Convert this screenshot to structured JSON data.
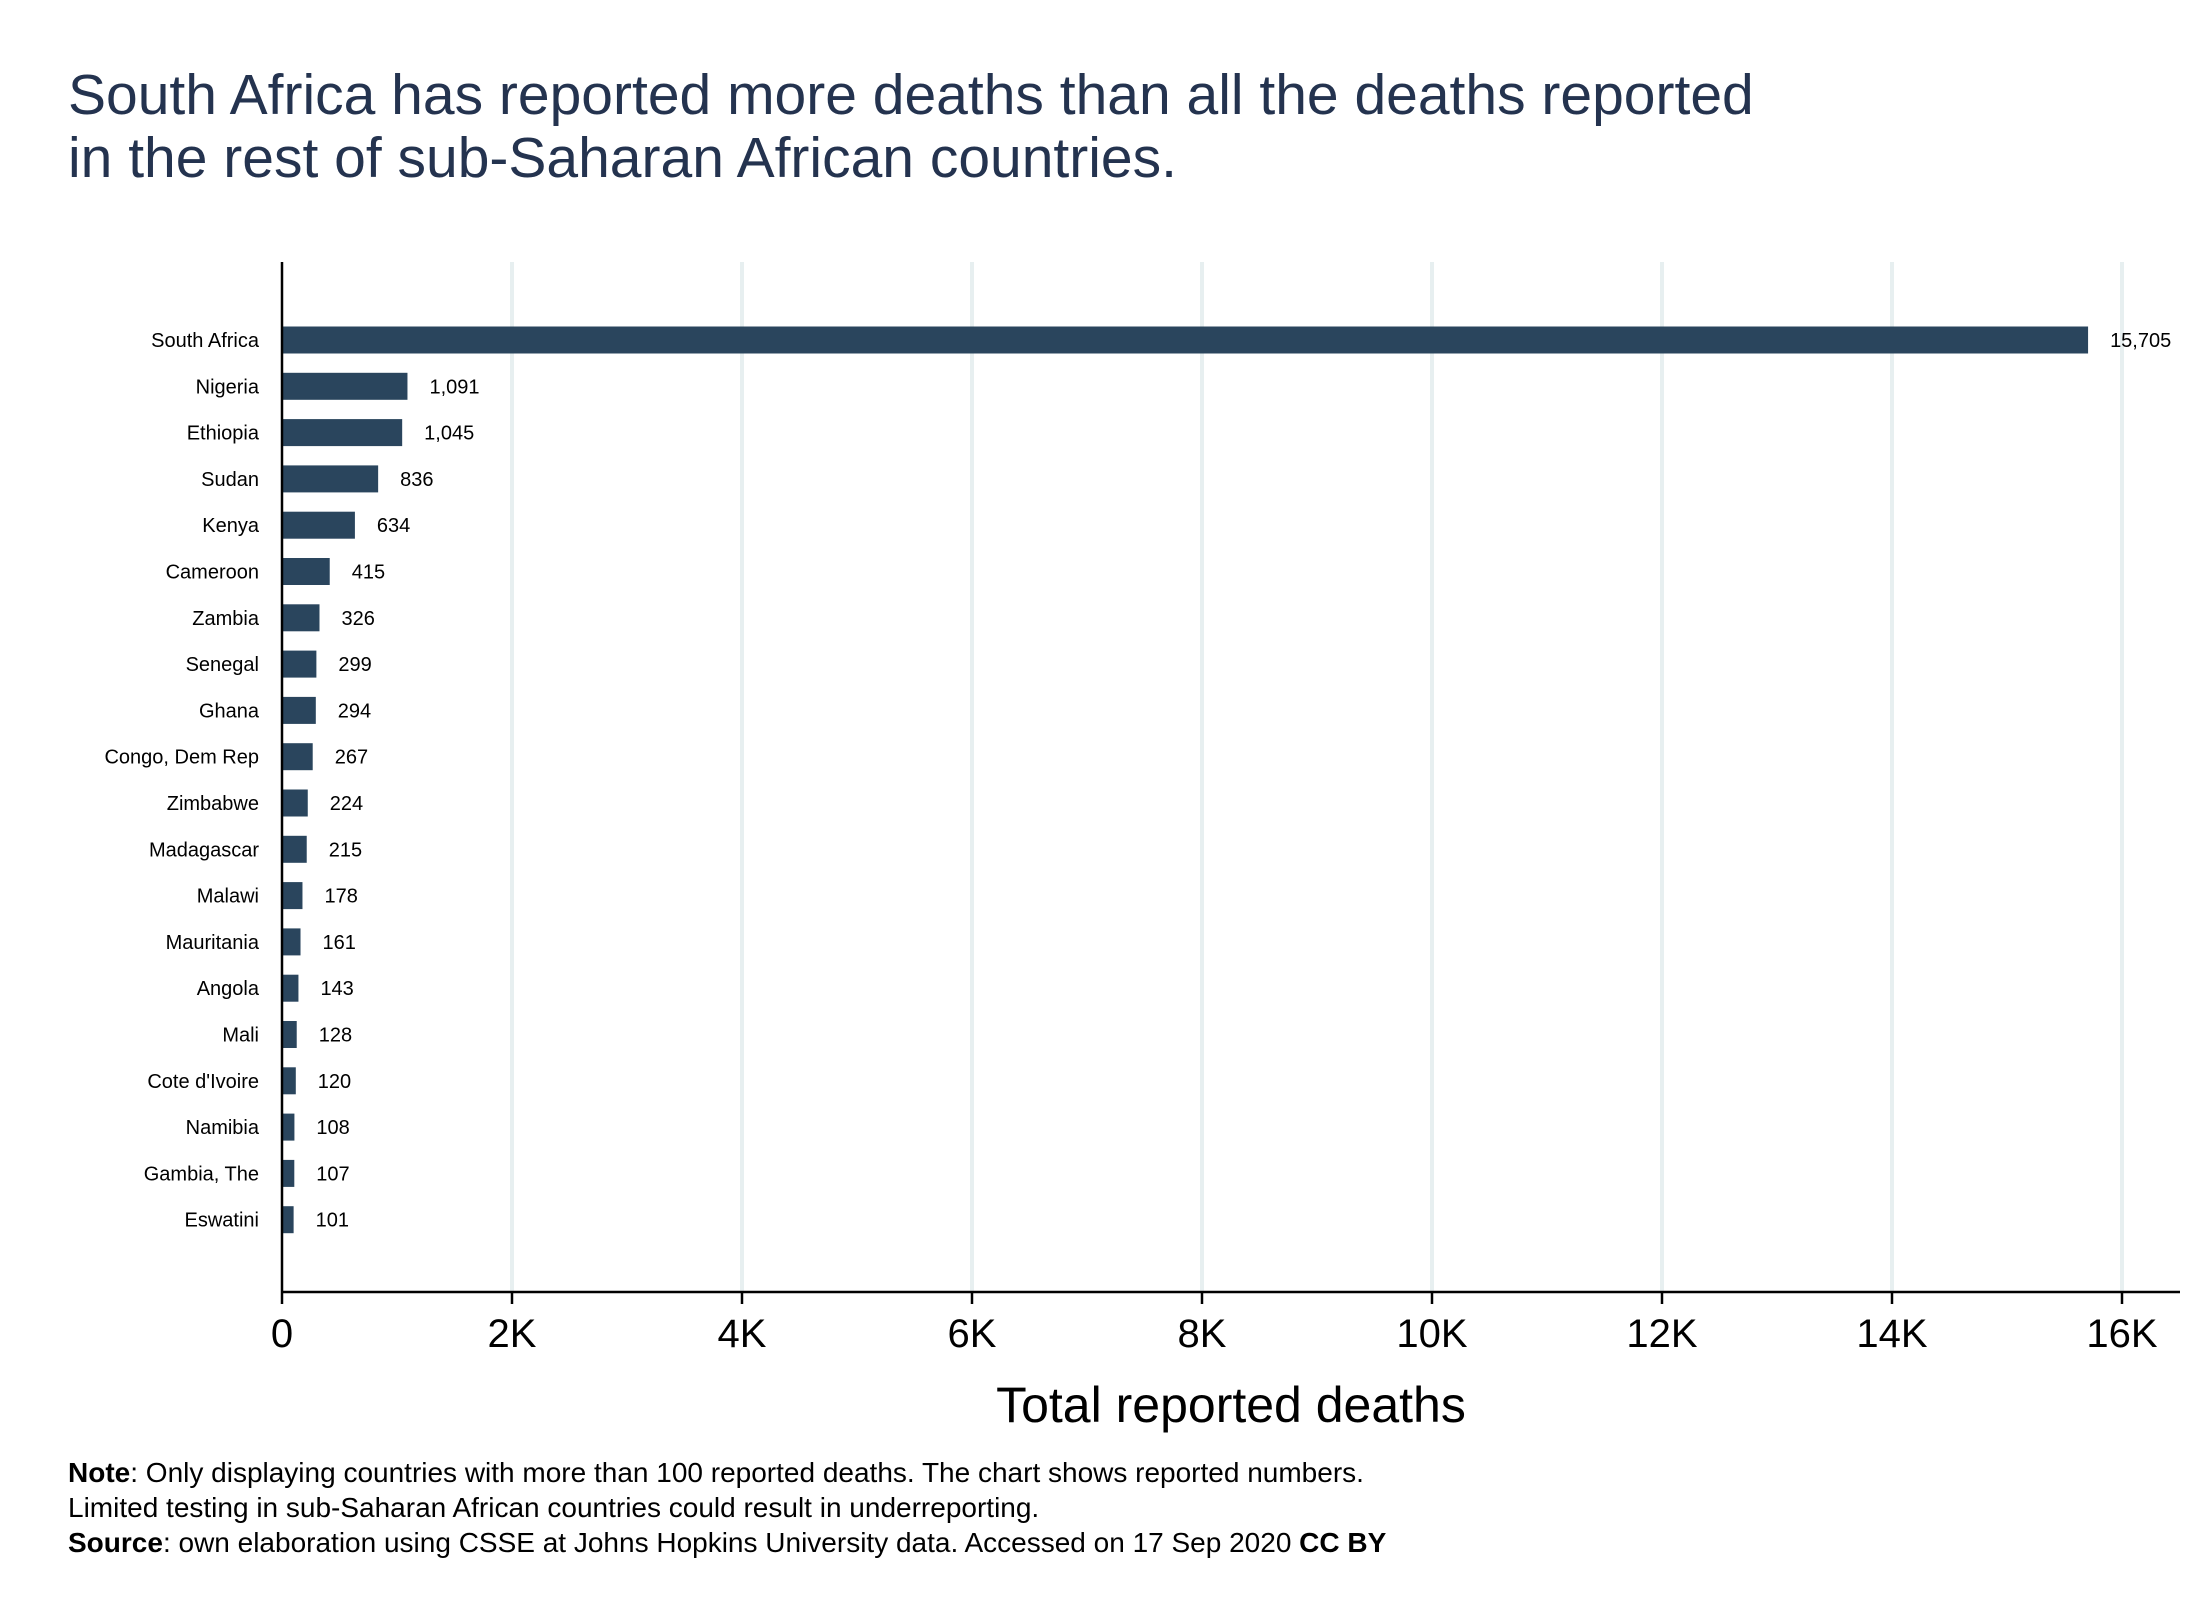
{
  "chart_data": {
    "type": "bar",
    "orientation": "horizontal",
    "title": "South Africa has reported more deaths than all the deaths reported in the rest of sub-Saharan African countries.",
    "title_lines": [
      "South Africa has reported more deaths than all the deaths reported",
      "in the rest of sub-Saharan African countries."
    ],
    "xlabel": "Total reported deaths",
    "ylabel": "",
    "xlim": [
      0,
      16000
    ],
    "x_ticks": [
      0,
      2000,
      4000,
      6000,
      8000,
      10000,
      12000,
      14000,
      16000
    ],
    "x_tick_labels": [
      "0",
      "2K",
      "4K",
      "6K",
      "8K",
      "10K",
      "12K",
      "14K",
      "16K"
    ],
    "grid": "vertical",
    "categories": [
      "South Africa",
      "Nigeria",
      "Ethiopia",
      "Sudan",
      "Kenya",
      "Cameroon",
      "Zambia",
      "Senegal",
      "Ghana",
      "Congo, Dem Rep",
      "Zimbabwe",
      "Madagascar",
      "Malawi",
      "Mauritania",
      "Angola",
      "Mali",
      "Cote d'Ivoire",
      "Namibia",
      "Gambia, The",
      "Eswatini"
    ],
    "values": [
      15705,
      1091,
      1045,
      836,
      634,
      415,
      326,
      299,
      294,
      267,
      224,
      215,
      178,
      161,
      143,
      128,
      120,
      108,
      107,
      101
    ],
    "value_labels": [
      "15,705",
      "1,091",
      "1,045",
      "836",
      "634",
      "415",
      "326",
      "299",
      "294",
      "267",
      "224",
      "215",
      "178",
      "161",
      "143",
      "128",
      "120",
      "108",
      "107",
      "101"
    ],
    "colors": {
      "bar": "#2a455d",
      "grid": "#e7eff0",
      "title": "#24334f",
      "axis": "#000000"
    }
  },
  "notes": {
    "line1_bold": "Note",
    "line1_rest": ": Only displaying countries with more than 100 reported deaths. The chart shows reported numbers.",
    "line2": "Limited testing in sub-Saharan African countries could result in underreporting.",
    "line3_bold": "Source",
    "line3_rest": ": own elaboration using CSSE at Johns Hopkins University data.  Accessed on 17 Sep 2020 ",
    "line3_license": "CC BY"
  }
}
